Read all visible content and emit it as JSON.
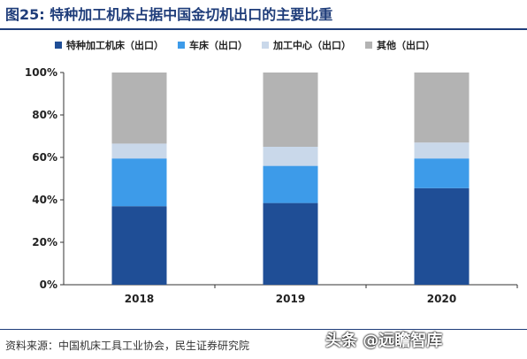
{
  "title": "图25: 特种加工机床占据中国金切机出口的主要比重",
  "legend": [
    {
      "label": "特种加工机床（出口）",
      "color": "#1f4e96"
    },
    {
      "label": "车床（出口）",
      "color": "#3d9be9"
    },
    {
      "label": "加工中心（出口）",
      "color": "#c9d8ea"
    },
    {
      "label": "其他（出口）",
      "color": "#b3b3b3"
    }
  ],
  "source": "资料来源：中国机床工具工业协会，民生证券研究院",
  "watermark": "头条 @远瞻智库",
  "chart_data": {
    "type": "bar",
    "stacked": true,
    "categories": [
      "2018",
      "2019",
      "2020"
    ],
    "series": [
      {
        "name": "特种加工机床（出口）",
        "color": "#1f4e96",
        "values": [
          37,
          38.5,
          45.5
        ]
      },
      {
        "name": "车床（出口）",
        "color": "#3d9be9",
        "values": [
          22.5,
          17.5,
          14
        ]
      },
      {
        "name": "加工中心（出口）",
        "color": "#c9d8ea",
        "values": [
          7,
          9,
          7.5
        ]
      },
      {
        "name": "其他（出口）",
        "color": "#b3b3b3",
        "values": [
          33.5,
          35,
          33
        ]
      }
    ],
    "yticks": [
      "0%",
      "20%",
      "40%",
      "60%",
      "80%",
      "100%"
    ],
    "ylim": [
      0,
      100
    ],
    "grid": false
  }
}
